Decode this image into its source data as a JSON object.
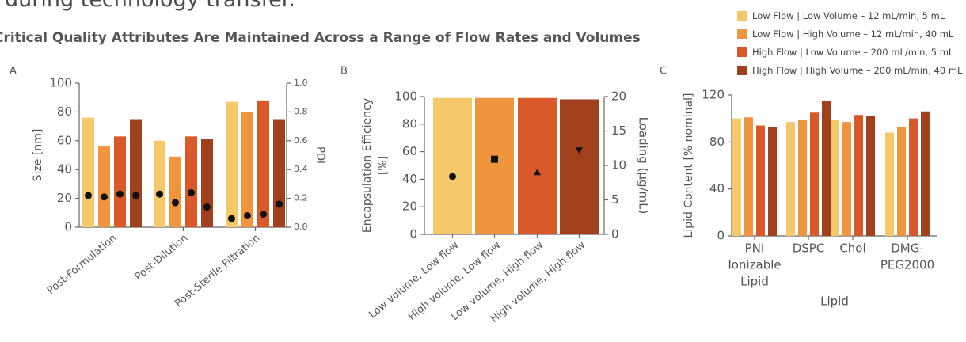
{
  "heading": "during technology transfer.",
  "colors": {
    "s1": "#f5c86a",
    "s2": "#ee953e",
    "s3": "#d9592b",
    "s4": "#a0401c",
    "axis": "#666666"
  },
  "chart_data": [
    {
      "panel": "A",
      "type": "bar",
      "title": "Critical Quality Attributes Are Maintained Across a Range of Flow Rates and Volumes",
      "ylabel": "Size [nm]",
      "y2label": "PDI",
      "ylim": [
        0,
        100
      ],
      "y2lim": [
        0,
        1.0
      ],
      "yticks": [
        "0",
        "20",
        "40",
        "60",
        "80",
        "100"
      ],
      "y2ticks": [
        "0.0",
        "0.2",
        "0.4",
        "0.6",
        "0.8",
        "1.0"
      ],
      "categories": [
        "Post-Formulation",
        "Post-Dilution",
        "Post-Sterile Filtration"
      ],
      "series": [
        {
          "name": "Low Flow | Low Volume – 12 mL/min, 5 mL",
          "values": [
            76,
            60,
            87
          ],
          "pdi": [
            0.22,
            0.23,
            0.06
          ]
        },
        {
          "name": "Low Flow | High Volume – 12 mL/min, 40 mL",
          "values": [
            56,
            49,
            80
          ],
          "pdi": [
            0.21,
            0.17,
            0.08
          ]
        },
        {
          "name": "High Flow | Low Volume – 200 mL/min, 5 mL",
          "values": [
            63,
            63,
            88
          ],
          "pdi": [
            0.23,
            0.24,
            0.09
          ]
        },
        {
          "name": "High Flow | High Volume – 200 mL/min, 40 mL",
          "values": [
            75,
            61,
            75
          ],
          "pdi": [
            0.22,
            0.14,
            0.16
          ]
        }
      ]
    },
    {
      "panel": "B",
      "type": "bar",
      "ylabel": "Encapsulation Efficiency [%]",
      "y2label": "Loading (µg/mL)",
      "ylim": [
        0,
        100
      ],
      "y2lim": [
        0,
        20
      ],
      "yticks": [
        "0",
        "20",
        "40",
        "60",
        "80",
        "100"
      ],
      "y2ticks": [
        "0",
        "5",
        "10",
        "15",
        "20"
      ],
      "categories": [
        "Low volume, Low flow",
        "High volume, Low flow",
        "Low volume, High flow",
        "High volume, High flow"
      ],
      "values": [
        99,
        99,
        99,
        98
      ],
      "loading": [
        8.4,
        10.9,
        9.0,
        12.2
      ],
      "markers": [
        "circle",
        "square",
        "triangle-up",
        "triangle-down"
      ]
    },
    {
      "panel": "C",
      "type": "bar",
      "ylabel": "Lipid Content [% nominal]",
      "xlabel": "Lipid",
      "ylim": [
        0,
        120
      ],
      "yticks": [
        "0",
        "40",
        "80",
        "120"
      ],
      "categories": [
        "PNI Ionizable Lipid",
        "DSPC",
        "Chol",
        "DMG-PEG2000"
      ],
      "category_lines": [
        [
          "PNI",
          "Ionizable",
          "Lipid"
        ],
        [
          "DSPC"
        ],
        [
          "Chol"
        ],
        [
          "DMG-",
          "PEG2000"
        ]
      ],
      "series": [
        {
          "name": "Low Flow | Low Volume – 12 mL/min, 5 mL",
          "values": [
            100,
            97,
            99,
            88
          ]
        },
        {
          "name": "Low Flow | High Volume – 12 mL/min, 40 mL",
          "values": [
            101,
            99,
            97,
            93
          ]
        },
        {
          "name": "High Flow | Low Volume – 200 mL/min, 5 mL",
          "values": [
            94,
            105,
            103,
            100
          ]
        },
        {
          "name": "High Flow | High Volume – 200 mL/min, 40 mL",
          "values": [
            93,
            115,
            102,
            106
          ]
        }
      ]
    }
  ]
}
